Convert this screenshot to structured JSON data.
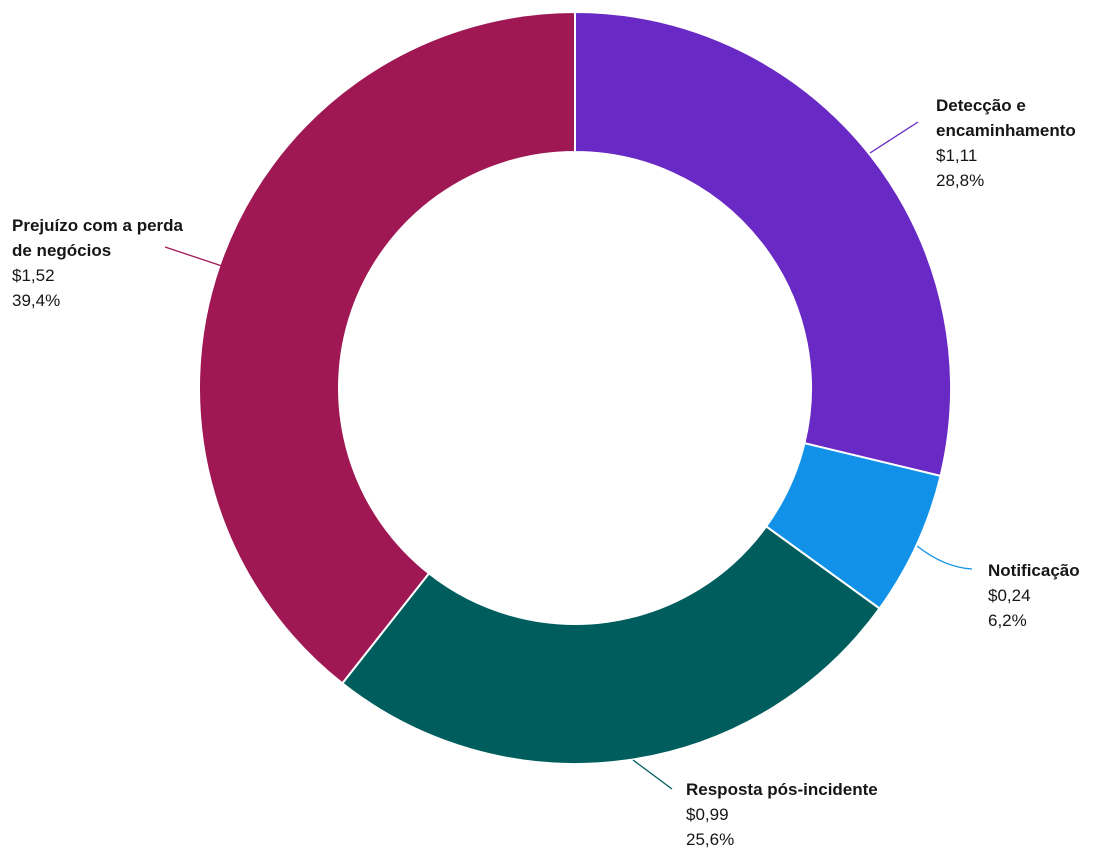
{
  "chart_data": {
    "type": "pie",
    "slices": [
      {
        "label": "Detecção e\nencaminhamento",
        "value": 1.11,
        "value_label": "$1,11",
        "percent_label": "28,8%",
        "color": "#6929c4"
      },
      {
        "label": "Notificação",
        "value": 0.24,
        "value_label": "$0,24",
        "percent_label": "6,2%",
        "color": "#1192e8"
      },
      {
        "label": "Resposta pós-incidente",
        "value": 0.99,
        "value_label": "$0,99",
        "percent_label": "25,6%",
        "color": "#005d5d"
      },
      {
        "label": "Prejuízo com a perda\nde negócios",
        "value": 1.52,
        "value_label": "$1,52",
        "percent_label": "39,4%",
        "color": "#9f1853"
      }
    ]
  }
}
